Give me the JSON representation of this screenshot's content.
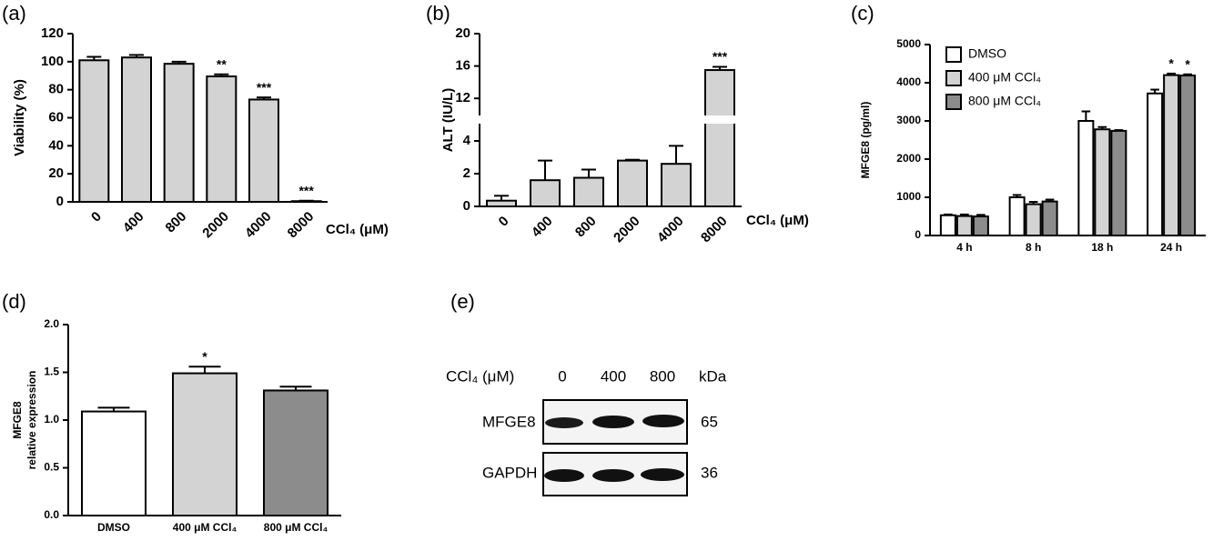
{
  "chart_data": [
    {
      "type": "bar",
      "panel_label": "(a)",
      "y_label": [
        "Viability (%)"
      ],
      "x_label": "CCl₄ (μM)",
      "categories": [
        "0",
        "400",
        "800",
        "2000",
        "4000",
        "8000"
      ],
      "values": [
        101,
        103,
        98.5,
        89.5,
        73,
        0.5
      ],
      "errors": [
        2.5,
        1.8,
        1.5,
        1.5,
        1.5,
        0.3
      ],
      "annotations": [
        null,
        null,
        null,
        "**",
        "***",
        "***"
      ],
      "color": "#d3d3d3",
      "ylim": [
        0,
        120
      ],
      "yticks": [
        0,
        20,
        40,
        60,
        80,
        100,
        120
      ]
    },
    {
      "type": "bar",
      "panel_label": "(b)",
      "y_label": [
        "ALT (IU/L)"
      ],
      "x_label": "CCl₄ (μM)",
      "categories": [
        "0",
        "400",
        "800",
        "2000",
        "4000",
        "8000"
      ],
      "values": [
        0.35,
        1.6,
        1.75,
        2.8,
        2.6,
        15.5
      ],
      "errors": [
        0.3,
        1.2,
        0.5,
        0.05,
        1.1,
        0.4
      ],
      "annotations": [
        null,
        null,
        null,
        null,
        null,
        "***"
      ],
      "color": "#d3d3d3",
      "ylim": [
        0,
        20
      ],
      "ybreak": [
        5,
        10
      ],
      "yticks": [
        0,
        2,
        4,
        12,
        16,
        20
      ]
    },
    {
      "type": "grouped_bar",
      "panel_label": "(c)",
      "y_label": [
        "MFGE8 (pg/ml)"
      ],
      "categories": [
        "4 h",
        "8 h",
        "18 h",
        "24 h"
      ],
      "legend": "upper left",
      "series": [
        {
          "name": "DMSO",
          "color": "#ffffff",
          "values": [
            530,
            1000,
            3000,
            3720
          ],
          "errors": [
            20,
            60,
            250,
            100
          ],
          "annotations": [
            null,
            null,
            null,
            null
          ]
        },
        {
          "name": "400 μM CCl₄",
          "color": "#d3d3d3",
          "values": [
            510,
            820,
            2780,
            4200
          ],
          "errors": [
            40,
            60,
            60,
            40
          ],
          "annotations": [
            null,
            null,
            null,
            "*"
          ]
        },
        {
          "name": "800 μM CCl₄",
          "color": "#8c8c8c",
          "values": [
            500,
            890,
            2740,
            4190
          ],
          "errors": [
            40,
            50,
            20,
            30
          ],
          "annotations": [
            null,
            null,
            null,
            "*"
          ]
        }
      ],
      "ylim": [
        0,
        5000
      ],
      "yticks": [
        0,
        1000,
        2000,
        3000,
        4000,
        5000
      ]
    },
    {
      "type": "bar",
      "panel_label": "(d)",
      "y_label": [
        "MFGE8",
        "relative expression"
      ],
      "categories": [
        "DMSO",
        "400 μM CCl₄",
        "800 μM CCl₄"
      ],
      "values": [
        1.09,
        1.49,
        1.31
      ],
      "errors": [
        0.04,
        0.07,
        0.04
      ],
      "annotations": [
        null,
        "*",
        null
      ],
      "colors": [
        "#ffffff",
        "#d3d3d3",
        "#8c8c8c"
      ],
      "ylim": [
        0,
        2
      ],
      "yticks": [
        {
          "value": 0,
          "label": "0.0"
        },
        {
          "value": 0.5,
          "label": "0.5"
        },
        {
          "value": 1,
          "label": "1.0"
        },
        {
          "value": 1.5,
          "label": "1.5"
        },
        {
          "value": 2,
          "label": "2.0"
        }
      ]
    }
  ],
  "blot": {
    "panel_label": "(e)",
    "header": "CCl₄ (μM)",
    "lanes": [
      "0",
      "400",
      "800"
    ],
    "unit": "kDa",
    "rows": [
      {
        "label": "MFGE8",
        "size": "65"
      },
      {
        "label": "GAPDH",
        "size": "36"
      }
    ]
  }
}
